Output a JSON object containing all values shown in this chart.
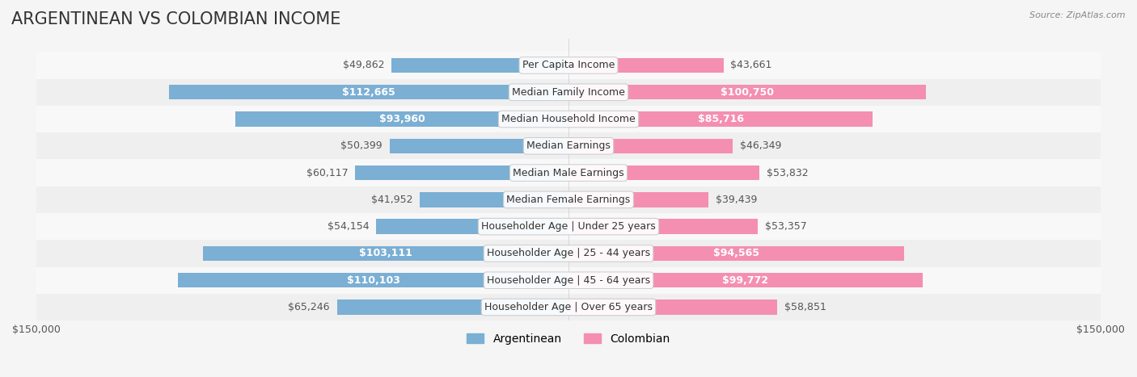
{
  "title": "ARGENTINEAN VS COLOMBIAN INCOME",
  "source": "Source: ZipAtlas.com",
  "categories": [
    "Per Capita Income",
    "Median Family Income",
    "Median Household Income",
    "Median Earnings",
    "Median Male Earnings",
    "Median Female Earnings",
    "Householder Age | Under 25 years",
    "Householder Age | 25 - 44 years",
    "Householder Age | 45 - 64 years",
    "Householder Age | Over 65 years"
  ],
  "argentinean_values": [
    49862,
    112665,
    93960,
    50399,
    60117,
    41952,
    54154,
    103111,
    110103,
    65246
  ],
  "colombian_values": [
    43661,
    100750,
    85716,
    46349,
    53832,
    39439,
    53357,
    94565,
    99772,
    58851
  ],
  "argentinean_labels": [
    "$49,862",
    "$112,665",
    "$93,960",
    "$50,399",
    "$60,117",
    "$41,952",
    "$54,154",
    "$103,111",
    "$110,103",
    "$65,246"
  ],
  "colombian_labels": [
    "$43,661",
    "$100,750",
    "$85,716",
    "$46,349",
    "$53,832",
    "$39,439",
    "$53,357",
    "$94,565",
    "$99,772",
    "$58,851"
  ],
  "max_value": 150000,
  "argentinean_color": "#7bafd4",
  "colombian_color": "#f48fb1",
  "argentinean_color_dark": "#5b9ec9",
  "colombian_color_dark": "#f06292",
  "background_color": "#f5f5f5",
  "row_background": "#ffffff",
  "row_alt_background": "#f0f0f0",
  "label_box_color": "#ffffff",
  "title_fontsize": 15,
  "label_fontsize": 9,
  "axis_fontsize": 9,
  "legend_fontsize": 10
}
